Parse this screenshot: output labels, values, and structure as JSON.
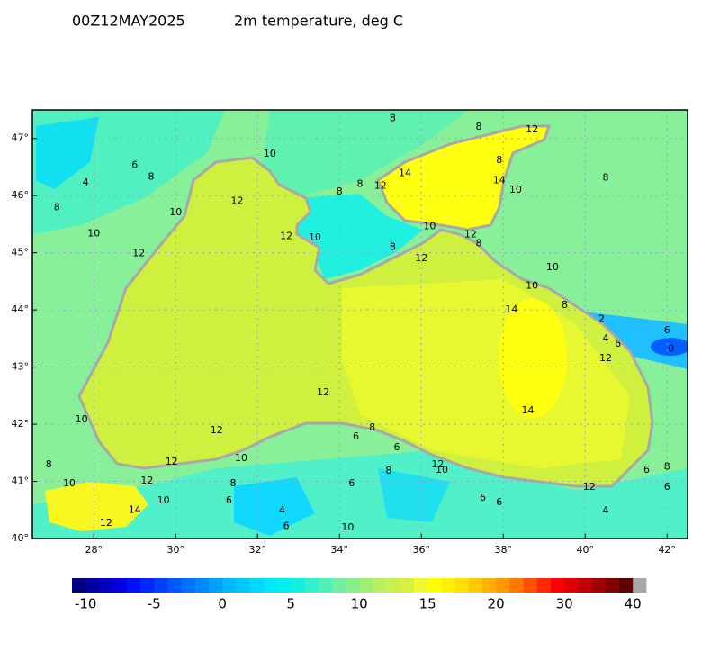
{
  "map": {
    "title": "00Z12MAY2025",
    "subtitle": "2m temperature, deg C",
    "xlim": [
      26.5,
      42.5
    ],
    "ylim": [
      40,
      47.5
    ],
    "xticks": [
      {
        "value": 28,
        "label": "28°"
      },
      {
        "value": 30,
        "label": "30°"
      },
      {
        "value": 32,
        "label": "32°"
      },
      {
        "value": 34,
        "label": "34°"
      },
      {
        "value": 36,
        "label": "36°"
      },
      {
        "value": 38,
        "label": "38°"
      },
      {
        "value": 40,
        "label": "40°"
      },
      {
        "value": 42,
        "label": "42°"
      }
    ],
    "yticks": [
      {
        "value": 40,
        "label": "40°"
      },
      {
        "value": 41,
        "label": "41°"
      },
      {
        "value": 42,
        "label": "42°"
      },
      {
        "value": 43,
        "label": "43°"
      },
      {
        "value": 44,
        "label": "44°"
      },
      {
        "value": 45,
        "label": "45°"
      },
      {
        "value": 46,
        "label": "46°"
      },
      {
        "value": 47,
        "label": "47°"
      }
    ],
    "grid": true,
    "contour_labels": [
      {
        "lon": 35.3,
        "lat": 47.35,
        "value": 8
      },
      {
        "lon": 37.4,
        "lat": 47.2,
        "value": 8
      },
      {
        "lon": 38.7,
        "lat": 47.15,
        "value": 12
      },
      {
        "lon": 32.3,
        "lat": 46.73,
        "value": 10
      },
      {
        "lon": 29.0,
        "lat": 46.53,
        "value": 6
      },
      {
        "lon": 29.4,
        "lat": 46.33,
        "value": 8
      },
      {
        "lon": 27.8,
        "lat": 46.22,
        "value": 4
      },
      {
        "lon": 35.6,
        "lat": 46.39,
        "value": 14
      },
      {
        "lon": 37.9,
        "lat": 46.62,
        "value": 8
      },
      {
        "lon": 37.9,
        "lat": 46.26,
        "value": 14
      },
      {
        "lon": 38.3,
        "lat": 46.1,
        "value": 10
      },
      {
        "lon": 40.5,
        "lat": 46.31,
        "value": 8
      },
      {
        "lon": 27.1,
        "lat": 45.79,
        "value": 8
      },
      {
        "lon": 31.5,
        "lat": 45.9,
        "value": 12
      },
      {
        "lon": 30.0,
        "lat": 45.7,
        "value": 10
      },
      {
        "lon": 34.0,
        "lat": 46.07,
        "value": 8
      },
      {
        "lon": 34.5,
        "lat": 46.2,
        "value": 8
      },
      {
        "lon": 35.0,
        "lat": 46.17,
        "value": 12
      },
      {
        "lon": 28.0,
        "lat": 45.33,
        "value": 10
      },
      {
        "lon": 29.1,
        "lat": 44.99,
        "value": 12
      },
      {
        "lon": 32.7,
        "lat": 45.29,
        "value": 12
      },
      {
        "lon": 33.4,
        "lat": 45.26,
        "value": 10
      },
      {
        "lon": 36.2,
        "lat": 45.46,
        "value": 10
      },
      {
        "lon": 37.2,
        "lat": 45.32,
        "value": 12
      },
      {
        "lon": 37.4,
        "lat": 45.16,
        "value": 8
      },
      {
        "lon": 35.3,
        "lat": 45.1,
        "value": 8
      },
      {
        "lon": 36.0,
        "lat": 44.9,
        "value": 12
      },
      {
        "lon": 39.2,
        "lat": 44.74,
        "value": 10
      },
      {
        "lon": 38.7,
        "lat": 44.42,
        "value": 10
      },
      {
        "lon": 39.5,
        "lat": 44.08,
        "value": 8
      },
      {
        "lon": 38.2,
        "lat": 44.0,
        "value": 14
      },
      {
        "lon": 40.4,
        "lat": 43.84,
        "value": 2
      },
      {
        "lon": 42.0,
        "lat": 43.64,
        "value": 6
      },
      {
        "lon": 40.5,
        "lat": 43.5,
        "value": 4
      },
      {
        "lon": 40.8,
        "lat": 43.4,
        "value": 6
      },
      {
        "lon": 42.1,
        "lat": 43.32,
        "value": 0
      },
      {
        "lon": 40.5,
        "lat": 43.15,
        "value": 12
      },
      {
        "lon": 33.6,
        "lat": 42.55,
        "value": 12
      },
      {
        "lon": 38.6,
        "lat": 42.24,
        "value": 14
      },
      {
        "lon": 27.7,
        "lat": 42.08,
        "value": 10
      },
      {
        "lon": 31.0,
        "lat": 41.89,
        "value": 12
      },
      {
        "lon": 34.8,
        "lat": 41.94,
        "value": 8
      },
      {
        "lon": 34.4,
        "lat": 41.78,
        "value": 6
      },
      {
        "lon": 35.4,
        "lat": 41.59,
        "value": 6
      },
      {
        "lon": 29.9,
        "lat": 41.34,
        "value": 12
      },
      {
        "lon": 31.6,
        "lat": 41.4,
        "value": 10
      },
      {
        "lon": 26.9,
        "lat": 41.29,
        "value": 8
      },
      {
        "lon": 29.3,
        "lat": 41.01,
        "value": 12
      },
      {
        "lon": 27.4,
        "lat": 40.96,
        "value": 10
      },
      {
        "lon": 31.4,
        "lat": 40.96,
        "value": 8
      },
      {
        "lon": 34.3,
        "lat": 40.96,
        "value": 6
      },
      {
        "lon": 35.2,
        "lat": 41.18,
        "value": 8
      },
      {
        "lon": 36.4,
        "lat": 41.29,
        "value": 12
      },
      {
        "lon": 36.5,
        "lat": 41.2,
        "value": 10
      },
      {
        "lon": 41.5,
        "lat": 41.2,
        "value": 6
      },
      {
        "lon": 42.0,
        "lat": 41.25,
        "value": 8
      },
      {
        "lon": 42.0,
        "lat": 40.9,
        "value": 6
      },
      {
        "lon": 40.1,
        "lat": 40.9,
        "value": 12
      },
      {
        "lon": 29.7,
        "lat": 40.66,
        "value": 10
      },
      {
        "lon": 31.3,
        "lat": 40.66,
        "value": 6
      },
      {
        "lon": 29.0,
        "lat": 40.5,
        "value": 14
      },
      {
        "lon": 37.5,
        "lat": 40.71,
        "value": 6
      },
      {
        "lon": 37.9,
        "lat": 40.63,
        "value": 6
      },
      {
        "lon": 32.6,
        "lat": 40.49,
        "value": 4
      },
      {
        "lon": 32.7,
        "lat": 40.21,
        "value": 6
      },
      {
        "lon": 28.3,
        "lat": 40.27,
        "value": 12
      },
      {
        "lon": 34.2,
        "lat": 40.19,
        "value": 10
      },
      {
        "lon": 40.5,
        "lat": 40.49,
        "value": 4
      }
    ],
    "colorbar": {
      "levels": [
        -11,
        -10,
        -9,
        -8,
        -7,
        -6,
        -5,
        -4,
        -3,
        -2,
        -1,
        0,
        1,
        2,
        3,
        4,
        5,
        6,
        7,
        8,
        9,
        10,
        11,
        12,
        13,
        14,
        15,
        16,
        17,
        18,
        19,
        20,
        22,
        24,
        26,
        28,
        30,
        32,
        34,
        36,
        38,
        40
      ],
      "colors": [
        "#000080",
        "#0000a0",
        "#0000c0",
        "#0000e0",
        "#0010ff",
        "#0028ff",
        "#0040ff",
        "#0058ff",
        "#0070ff",
        "#0088ff",
        "#00a0ff",
        "#00b8ff",
        "#00c8ff",
        "#00d8ff",
        "#00e8ff",
        "#00f0f0",
        "#10f0e0",
        "#30f0d0",
        "#50f0b8",
        "#70f0a0",
        "#88f088",
        "#a0f070",
        "#b8f060",
        "#c8f050",
        "#d8f040",
        "#f0f830",
        "#ffff00",
        "#fff000",
        "#ffe000",
        "#ffc800",
        "#ffb000",
        "#ff9800",
        "#ff7800",
        "#ff5000",
        "#ff2800",
        "#ff0000",
        "#e00000",
        "#c00000",
        "#a00000",
        "#800000",
        "#600000"
      ],
      "over_color": "#a8a8a8",
      "ticks": [
        -10,
        -5,
        0,
        5,
        10,
        15,
        20,
        30,
        40
      ]
    }
  }
}
